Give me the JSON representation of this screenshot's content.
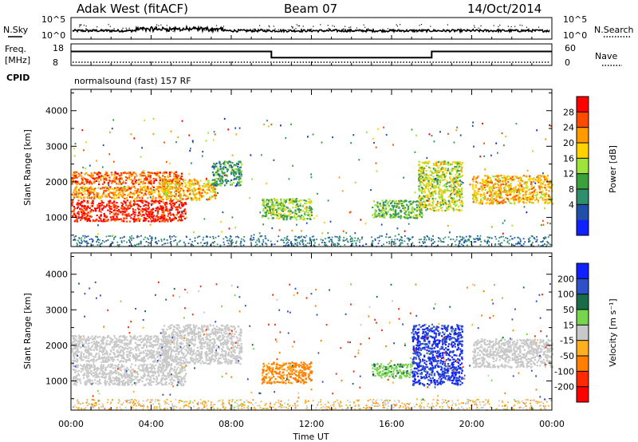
{
  "header": {
    "station": "Adak West (fitACF)",
    "beam": "Beam 07",
    "date": "14/Oct/2014"
  },
  "noise_panel": {
    "left_label": "N.Sky",
    "right_label": "N.Search",
    "left_ticks": [
      "10^5",
      "10^0"
    ],
    "right_ticks": [
      "10^5",
      "10^0"
    ]
  },
  "freq_panel": {
    "left_label_1": "Freq.",
    "left_label_2": "[MHz]",
    "cpid_label": "CPID",
    "right_label": "Nave",
    "left_ticks": [
      "18",
      "8"
    ],
    "right_ticks": [
      "60",
      "0"
    ],
    "cpid_text": "normalsound (fast) 157 RF",
    "freq_series_hours": [
      0,
      10,
      10,
      18,
      18,
      24
    ],
    "freq_series_mhz": [
      14.5,
      14.5,
      11.6,
      11.6,
      14.5,
      14.5
    ]
  },
  "time_axis": {
    "label": "Time UT",
    "ticks": [
      "00:00",
      "04:00",
      "08:00",
      "12:00",
      "16:00",
      "20:00",
      "00:00"
    ]
  },
  "power_colorbar": {
    "label": "Power [dB]",
    "ticks": [
      "28",
      "24",
      "20",
      "16",
      "12",
      "8",
      "4"
    ],
    "colors": [
      "#ff0000",
      "#ff4b00",
      "#ff9a00",
      "#ffd200",
      "#9ee23c",
      "#3ca03c",
      "#2f8f6d",
      "#1f4fa8",
      "#1020ff"
    ]
  },
  "velocity_colorbar": {
    "label": "Velocity [m s⁻¹]",
    "ticks": [
      "200",
      "100",
      "50",
      "15",
      "-15",
      "-50",
      "-100",
      "-200"
    ],
    "colors": [
      "#1020ff",
      "#3050c8",
      "#1a6b4a",
      "#77d44d",
      "#c8c8c8",
      "#ffb020",
      "#ff7f00",
      "#ff2a00",
      "#ff0000"
    ]
  },
  "chart_data": [
    {
      "type": "heatmap",
      "quantity": "Power",
      "xlabel": "",
      "ylabel": "Slant Range [km]",
      "xlim_hours": [
        0,
        24
      ],
      "ylim_km": [
        180,
        4600
      ],
      "yticks": [
        1000,
        2000,
        3000,
        4000
      ],
      "zlim_db": [
        0,
        30
      ],
      "regions": [
        {
          "t0": 0.0,
          "t1": 5.7,
          "r0": 900,
          "r1": 1500,
          "value": 28
        },
        {
          "t0": 0.0,
          "t1": 5.0,
          "r0": 1550,
          "r1": 1900,
          "value": 22
        },
        {
          "t0": 0.0,
          "t1": 5.5,
          "r0": 1950,
          "r1": 2300,
          "value": 24
        },
        {
          "t0": 4.5,
          "t1": 7.2,
          "r0": 1500,
          "r1": 2100,
          "value": 20
        },
        {
          "t0": 7.0,
          "t1": 8.5,
          "r0": 1900,
          "r1": 2600,
          "value": 10
        },
        {
          "t0": 9.5,
          "t1": 12.0,
          "r0": 950,
          "r1": 1550,
          "value": 14
        },
        {
          "t0": 15.0,
          "t1": 17.5,
          "r0": 1000,
          "r1": 1500,
          "value": 12
        },
        {
          "t0": 17.3,
          "t1": 19.5,
          "r0": 1200,
          "r1": 2600,
          "value": 16
        },
        {
          "t0": 20.0,
          "t1": 24.0,
          "r0": 1400,
          "r1": 2200,
          "value": 20
        }
      ]
    },
    {
      "type": "heatmap",
      "quantity": "Velocity",
      "xlabel": "Time UT",
      "ylabel": "Slant Range [km]",
      "xlim_hours": [
        0,
        24
      ],
      "ylim_km": [
        180,
        4600
      ],
      "yticks": [
        1000,
        2000,
        3000,
        4000
      ],
      "zlim_ms": [
        -200,
        200
      ],
      "regions": [
        {
          "t0": 0.0,
          "t1": 5.7,
          "r0": 900,
          "r1": 1500,
          "value": 0
        },
        {
          "t0": 0.0,
          "t1": 5.0,
          "r0": 1550,
          "r1": 2300,
          "value": 0
        },
        {
          "t0": 4.5,
          "t1": 8.5,
          "r0": 1500,
          "r1": 2600,
          "value": 0
        },
        {
          "t0": 9.5,
          "t1": 12.0,
          "r0": 950,
          "r1": 1550,
          "value": -60
        },
        {
          "t0": 15.0,
          "t1": 17.0,
          "r0": 1100,
          "r1": 1500,
          "value": 40
        },
        {
          "t0": 17.0,
          "t1": 19.5,
          "r0": 900,
          "r1": 2600,
          "value": 200
        },
        {
          "t0": 20.0,
          "t1": 24.0,
          "r0": 1400,
          "r1": 2200,
          "value": 0
        }
      ]
    }
  ]
}
